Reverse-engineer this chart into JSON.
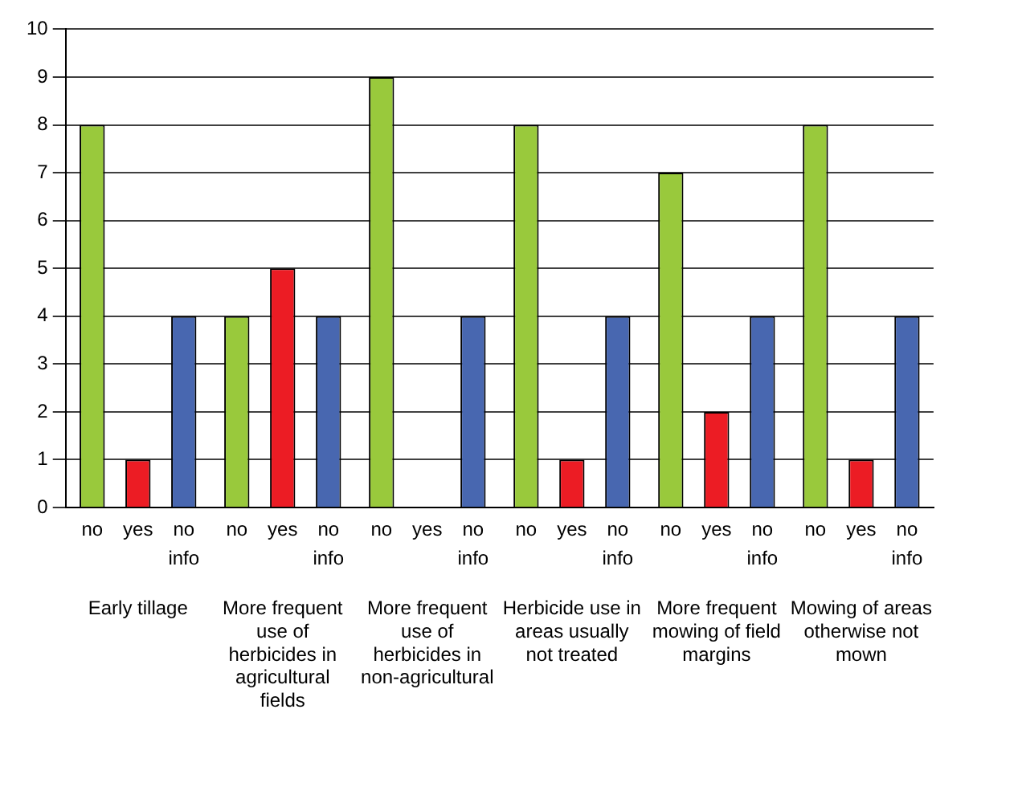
{
  "chart_data": {
    "type": "bar",
    "categories": [
      "Early tillage",
      "More frequent use of herbicides in agricultural fields",
      "More frequent use of herbicides in non-agricultural",
      "Herbicide use in areas usually not treated",
      "More frequent mowing of field margins",
      "Mowing of areas otherwise not mown"
    ],
    "series": [
      {
        "name": "no",
        "color": "#99c93c",
        "values": [
          8,
          4,
          9,
          8,
          7,
          8
        ]
      },
      {
        "name": "yes",
        "color": "#ec1c24",
        "values": [
          1,
          5,
          0,
          1,
          2,
          1
        ]
      },
      {
        "name": "no info",
        "color": "#4867b0",
        "values": [
          4,
          4,
          4,
          4,
          4,
          4
        ]
      }
    ],
    "ylim": [
      0,
      10
    ],
    "yticks": [
      0,
      1,
      2,
      3,
      4,
      5,
      6,
      7,
      8,
      9,
      10
    ],
    "grid": "y"
  }
}
